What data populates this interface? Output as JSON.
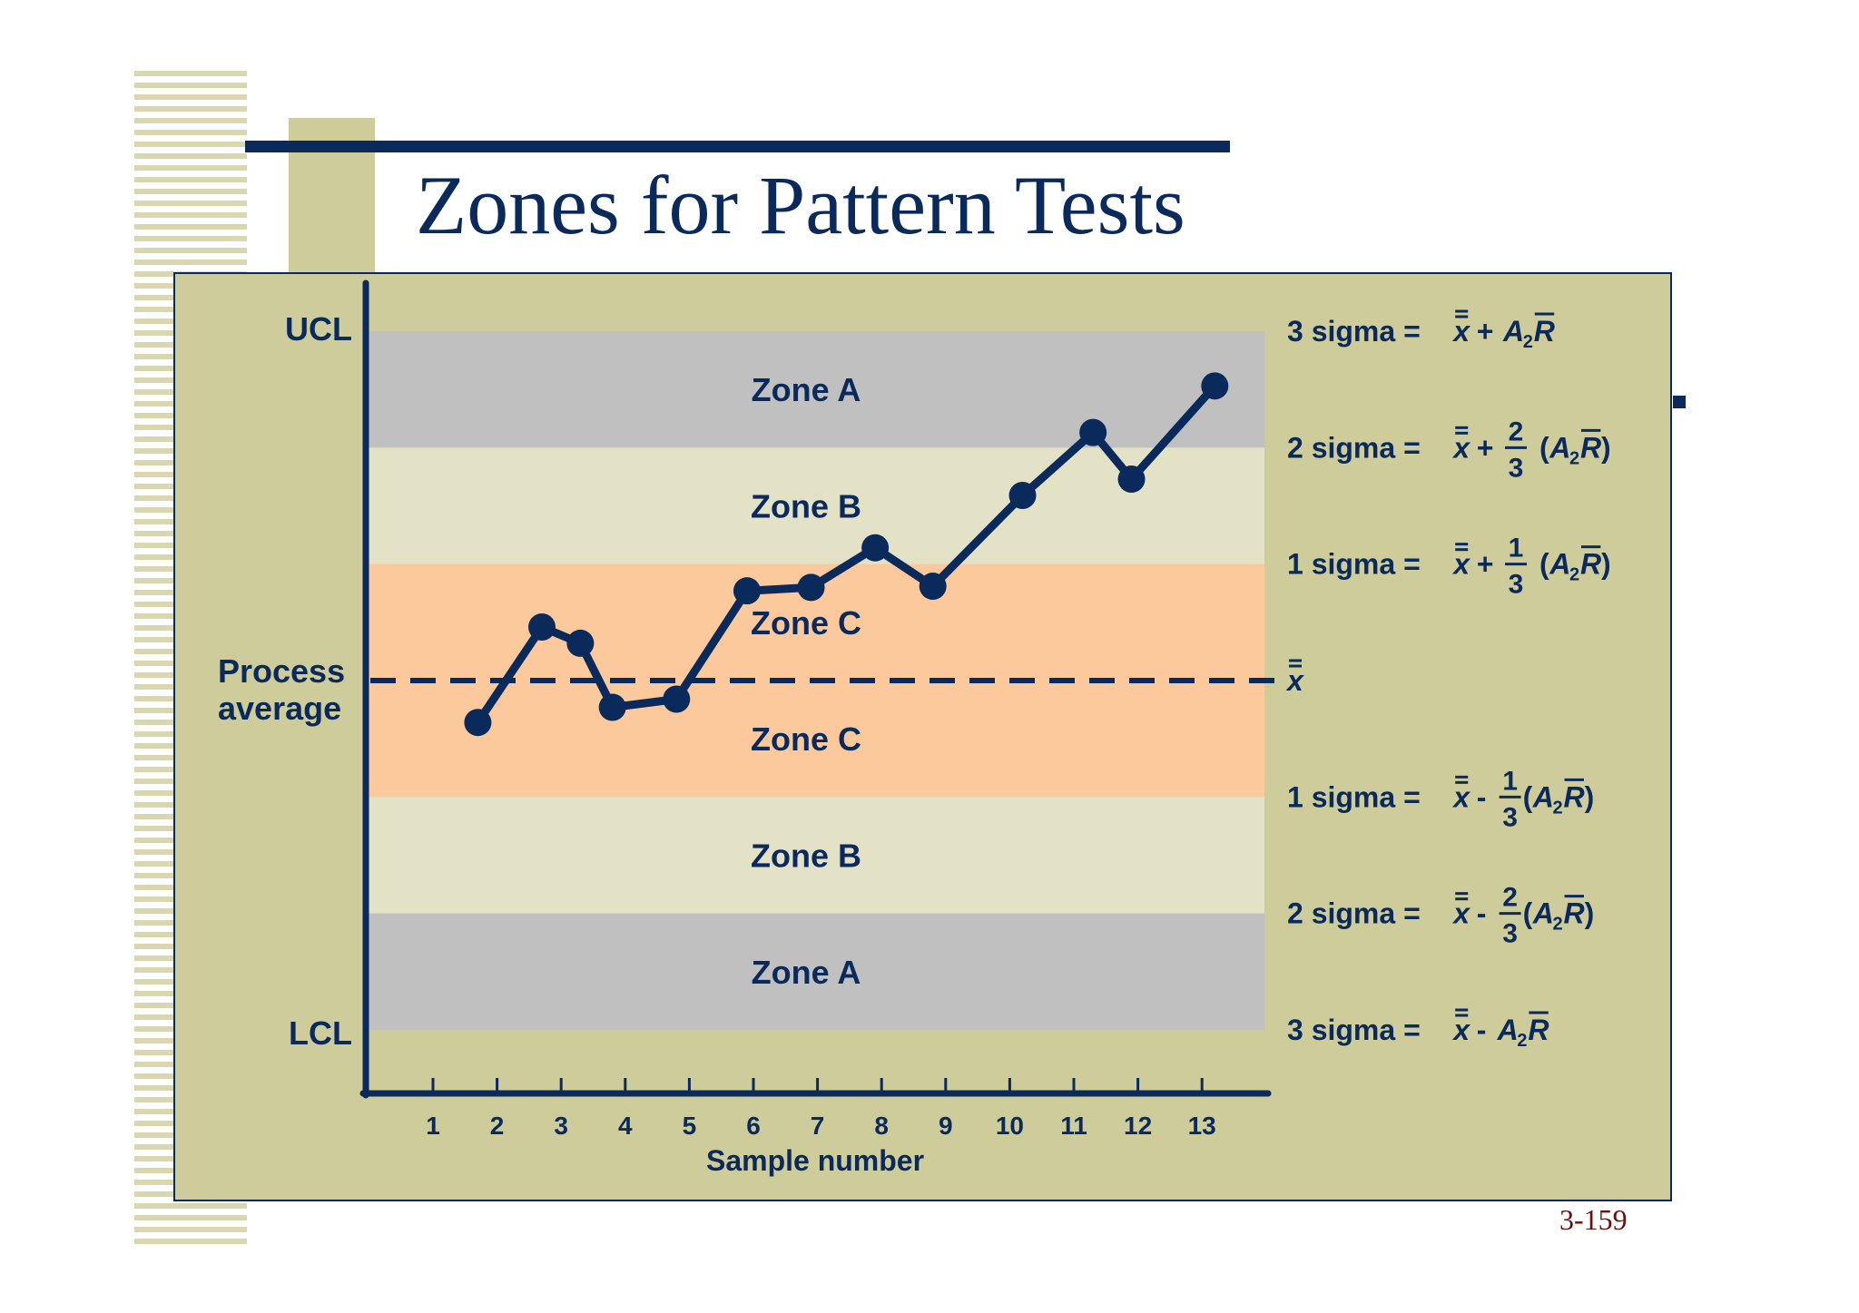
{
  "slide": {
    "title": "Zones for Pattern Tests",
    "page_number": "3-159"
  },
  "colors": {
    "navy": "#0b2a5c",
    "panel": "#cdcc9a",
    "zone_a": "#c0c0c0",
    "zone_b": "#e4e2c6",
    "zone_c": "#fcc99c"
  },
  "chart_data": {
    "type": "line",
    "xlabel": "Sample number",
    "x_ticks": [
      "1",
      "2",
      "3",
      "4",
      "5",
      "6",
      "7",
      "8",
      "9",
      "10",
      "11",
      "12",
      "13"
    ],
    "y_axis": {
      "ticks_shown": false,
      "y_unit": "sigma from process average",
      "ylim": [
        -3,
        3
      ]
    },
    "limit_labels": {
      "ucl": "UCL",
      "lcl": "LCL",
      "center": "Process average",
      "center_lines": [
        "Process",
        "average"
      ]
    },
    "center_line_style": "dashed",
    "zones": [
      {
        "label": "Zone A",
        "from": 2,
        "to": 3,
        "color": "zone_a"
      },
      {
        "label": "Zone B",
        "from": 1,
        "to": 2,
        "color": "zone_b"
      },
      {
        "label": "Zone C",
        "from": 0,
        "to": 1,
        "color": "zone_c"
      },
      {
        "label": "Zone C",
        "from": -1,
        "to": 0,
        "color": "zone_c"
      },
      {
        "label": "Zone B",
        "from": -2,
        "to": -1,
        "color": "zone_b"
      },
      {
        "label": "Zone A",
        "from": -3,
        "to": -2,
        "color": "zone_a"
      }
    ],
    "series": [
      {
        "points": [
          {
            "x": 1.7,
            "y": -0.36
          },
          {
            "x": 2.7,
            "y": 0.46
          },
          {
            "x": 3.3,
            "y": 0.32
          },
          {
            "x": 3.8,
            "y": -0.23
          },
          {
            "x": 4.8,
            "y": -0.16
          },
          {
            "x": 5.9,
            "y": 0.77
          },
          {
            "x": 6.9,
            "y": 0.8
          },
          {
            "x": 7.9,
            "y": 1.14
          },
          {
            "x": 8.8,
            "y": 0.81
          },
          {
            "x": 10.2,
            "y": 1.59
          },
          {
            "x": 11.3,
            "y": 2.13
          },
          {
            "x": 11.9,
            "y": 1.73
          },
          {
            "x": 13.2,
            "y": 2.53
          }
        ]
      }
    ],
    "formulas": [
      {
        "y": 3,
        "prefix": "3 sigma = ",
        "op": "+",
        "type": "full"
      },
      {
        "y": 2,
        "prefix": "2 sigma = ",
        "op": "+",
        "type": "frac",
        "num": "2",
        "den": "3"
      },
      {
        "y": 1,
        "prefix": "1 sigma = ",
        "op": "+",
        "type": "frac",
        "num": "1",
        "den": "3"
      },
      {
        "y": 0,
        "prefix": "",
        "op": "",
        "type": "center"
      },
      {
        "y": -1,
        "prefix": "1 sigma = ",
        "op": "-",
        "type": "frac",
        "num": "1",
        "den": "3"
      },
      {
        "y": -2,
        "prefix": "2 sigma = ",
        "op": "-",
        "type": "frac",
        "num": "2",
        "den": "3"
      },
      {
        "y": -3,
        "prefix": "3 sigma = ",
        "op": "-",
        "type": "full"
      }
    ],
    "formula_symbols": {
      "x": "x",
      "A": "A",
      "sub": "2",
      "R": "R",
      "open": "(",
      "close": ")"
    }
  }
}
